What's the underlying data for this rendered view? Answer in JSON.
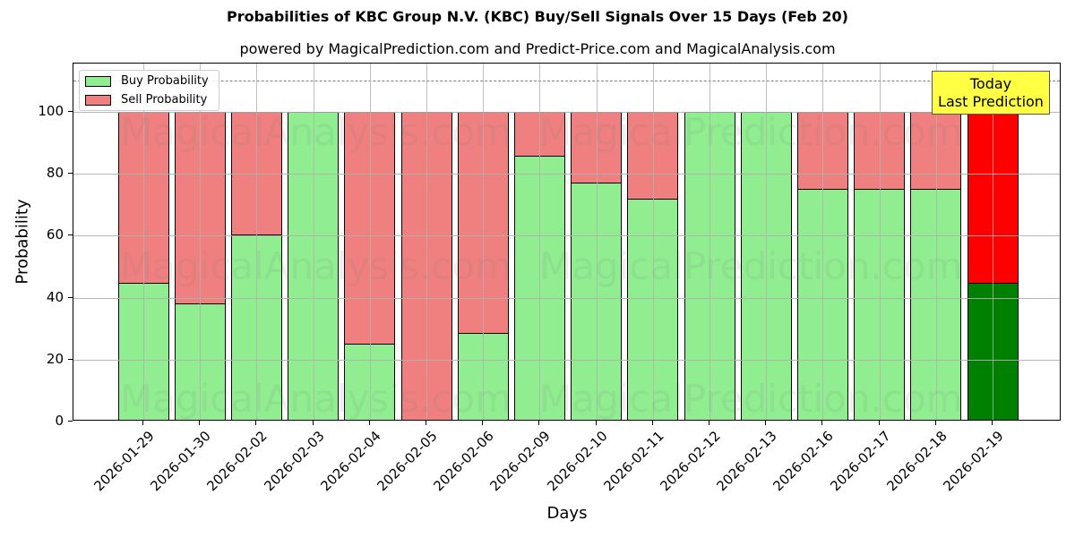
{
  "chart_data": {
    "type": "bar",
    "stacked": true,
    "title": "Probabilities of KBC Group N.V. (KBC) Buy/Sell Signals Over 15 Days (Feb 20)",
    "subtitle": "powered by MagicalPrediction.com and Predict-Price.com and MagicalAnalysis.com",
    "xlabel": "Days",
    "ylabel": "Probability",
    "ylim": [
      0,
      115.6
    ],
    "yticks": [
      0,
      20,
      40,
      60,
      80,
      100
    ],
    "grid": true,
    "reference_line": {
      "y": 110,
      "style": "dashed",
      "color": "#808080"
    },
    "legend_position": "upper left",
    "categories": [
      "2026-01-29",
      "2026-01-30",
      "2026-02-02",
      "2026-02-03",
      "2026-02-04",
      "2026-02-05",
      "2026-02-06",
      "2026-02-09",
      "2026-02-10",
      "2026-02-11",
      "2026-02-12",
      "2026-02-13",
      "2026-02-16",
      "2026-02-17",
      "2026-02-18",
      "2026-02-19"
    ],
    "series": [
      {
        "name": "Buy Probability",
        "color": "#90ee90",
        "values": [
          44.8,
          38.1,
          60.4,
          100,
          25.0,
          0,
          28.5,
          85.9,
          77.3,
          72.0,
          100,
          100,
          75.1,
          75.1,
          75.1,
          44.7
        ]
      },
      {
        "name": "Sell Probability",
        "color": "#f08080",
        "values": [
          55.2,
          61.9,
          39.6,
          0,
          75.0,
          100,
          71.5,
          14.1,
          22.7,
          28.0,
          0,
          0,
          24.9,
          24.9,
          24.9,
          55.3
        ]
      }
    ],
    "highlight": {
      "index": 15,
      "buy_color": "#008000",
      "sell_color": "#ff0000",
      "annotation": "Today\nLast Prediction"
    },
    "annotation": {
      "line1": "Today",
      "line2": "Last Prediction",
      "background": "#ffff44"
    },
    "watermarks": [
      "MagicalAnalysis.com",
      "MagicalPrediction.com"
    ]
  }
}
